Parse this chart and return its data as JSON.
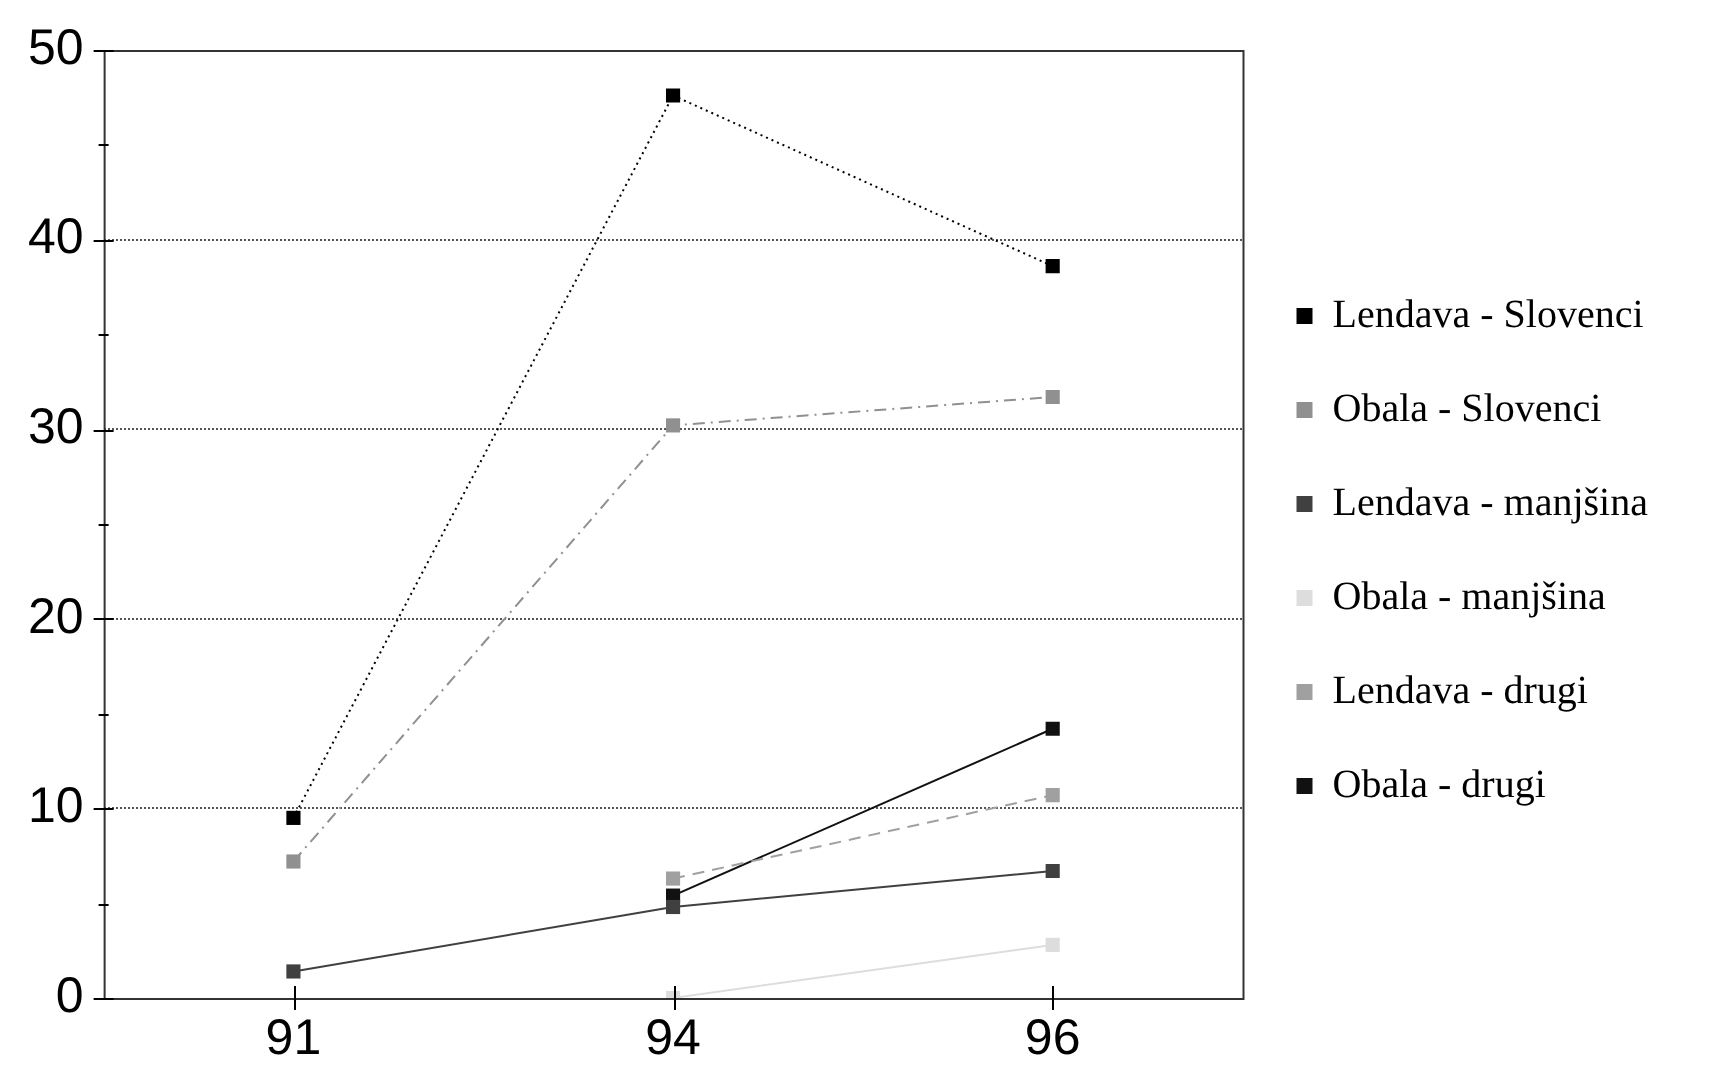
{
  "chart_data": {
    "type": "line",
    "categories": [
      "91",
      "94",
      "96"
    ],
    "series": [
      {
        "name": "Lendava - Slovenci",
        "color": "#000000",
        "line_style": "dotted",
        "values": [
          9.5,
          47.6,
          38.6
        ]
      },
      {
        "name": "Obala - Slovenci",
        "color": "#909090",
        "line_style": "dashdot",
        "values": [
          7.2,
          30.2,
          31.7
        ]
      },
      {
        "name": "Lendava - manjšina",
        "color": "#404040",
        "line_style": "solid",
        "values": [
          1.4,
          4.8,
          6.7
        ]
      },
      {
        "name": "Obala - manjšina",
        "color": "#dddddd",
        "line_style": "solid",
        "values": [
          null,
          0,
          2.8
        ]
      },
      {
        "name": "Lendava - drugi",
        "color": "#a0a0a0",
        "line_style": "dashed",
        "values": [
          null,
          6.3,
          10.7
        ]
      },
      {
        "name": "Obala - drugi",
        "color": "#111111",
        "line_style": "solid",
        "values": [
          null,
          5.4,
          14.2
        ]
      }
    ],
    "ylim": [
      0,
      50
    ],
    "yticks": [
      0,
      {
        "value": 5,
        "label": null
      },
      10,
      {
        "value": 15,
        "label": null
      },
      20,
      {
        "value": 25,
        "label": null
      },
      30,
      {
        "value": 35,
        "label": null
      },
      40,
      {
        "value": 45,
        "label": null
      },
      50
    ],
    "grid": "y",
    "legend": "right",
    "marker": "square"
  }
}
